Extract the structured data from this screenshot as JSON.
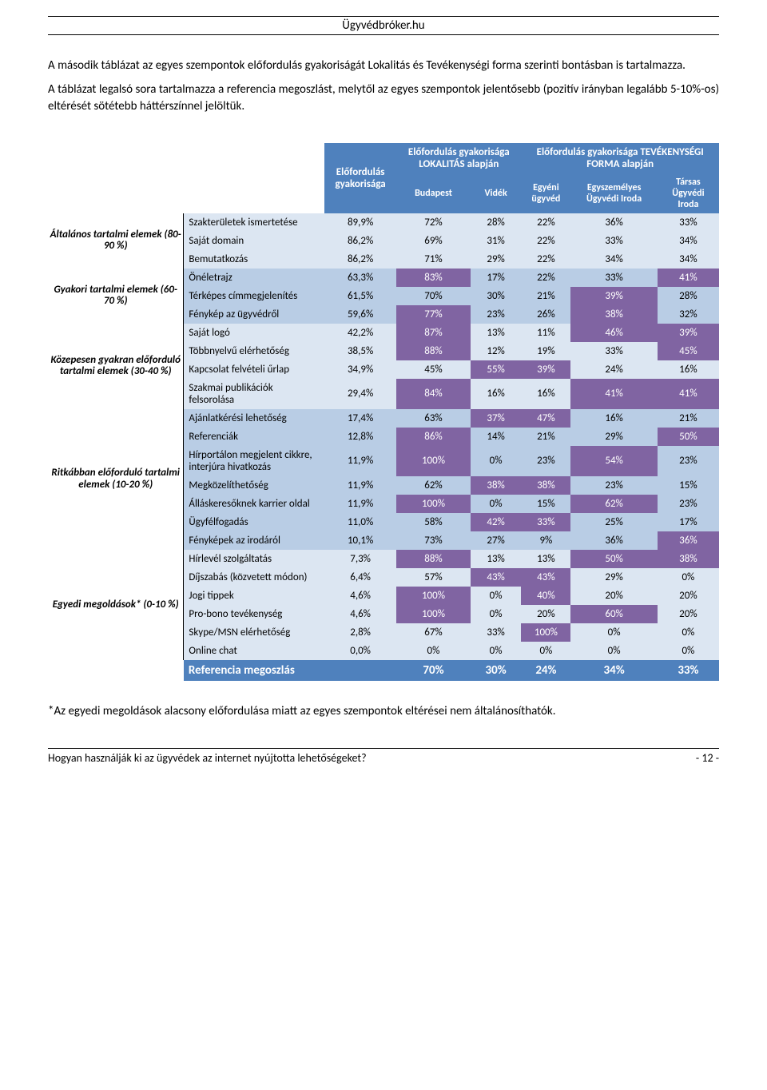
{
  "header": {
    "site": "Ügyvédbróker.hu"
  },
  "intro": {
    "p1": "A második táblázat az egyes szempontok előfordulás gyakoriságát Lokalitás és Tevékenységi forma szerinti bontásban is tartalmazza.",
    "p2": "A táblázat legalsó sora tartalmazza a referencia megoszlást, melytől az egyes szempontok jelentősebb (pozitív irányban legalább 5-10%-os) eltérését sötétebb háttérszínnel jelöltük."
  },
  "colhead": {
    "freq": "Előfordulás gyakorisága",
    "loc": "Előfordulás gyakorisága LOKALITÁS alapján",
    "act": "Előfordulás gyakorisága TEVÉKENYSÉGI FORMA alapján",
    "budapest": "Budapest",
    "videk": "Vidék",
    "egyeni": "Egyéni ügyvéd",
    "eszem": "Egyszemélyes Ügyvédi Iroda",
    "tarsas": "Társas Ügyvédi Iroda"
  },
  "groups": [
    {
      "label": "Általános tartalmi elemek (80-90 %)",
      "band": "A",
      "rows": [
        {
          "label": "Szakterületek ismertetése",
          "v": [
            "89,9%",
            "72%",
            "28%",
            "22%",
            "36%",
            "33%"
          ],
          "hi": [
            0,
            0,
            0,
            0,
            0,
            0
          ]
        },
        {
          "label": "Saját domain",
          "v": [
            "86,2%",
            "69%",
            "31%",
            "22%",
            "33%",
            "34%"
          ],
          "hi": [
            0,
            0,
            0,
            0,
            0,
            0
          ]
        },
        {
          "label": "Bemutatkozás",
          "v": [
            "86,2%",
            "71%",
            "29%",
            "22%",
            "34%",
            "34%"
          ],
          "hi": [
            0,
            0,
            0,
            0,
            0,
            0
          ]
        }
      ]
    },
    {
      "label": "Gyakori tartalmi elemek (60-70 %)",
      "band": "B",
      "rows": [
        {
          "label": "Önéletrajz",
          "v": [
            "63,3%",
            "83%",
            "17%",
            "22%",
            "33%",
            "41%"
          ],
          "hi": [
            0,
            1,
            0,
            0,
            0,
            1
          ]
        },
        {
          "label": "Térképes címmegjelenítés",
          "v": [
            "61,5%",
            "70%",
            "30%",
            "21%",
            "39%",
            "28%"
          ],
          "hi": [
            0,
            0,
            0,
            0,
            1,
            0
          ]
        },
        {
          "label": "Fénykép az ügyvédről",
          "v": [
            "59,6%",
            "77%",
            "23%",
            "26%",
            "38%",
            "32%"
          ],
          "hi": [
            0,
            1,
            0,
            0,
            1,
            0
          ]
        }
      ]
    },
    {
      "label": "Közepesen gyakran előforduló tartalmi elemek (30-40 %)",
      "band": "A",
      "rows": [
        {
          "label": "Saját logó",
          "v": [
            "42,2%",
            "87%",
            "13%",
            "11%",
            "46%",
            "39%"
          ],
          "hi": [
            0,
            1,
            0,
            0,
            1,
            1
          ]
        },
        {
          "label": "Többnyelvű elérhetőség",
          "v": [
            "38,5%",
            "88%",
            "12%",
            "19%",
            "33%",
            "45%"
          ],
          "hi": [
            0,
            1,
            0,
            0,
            0,
            1
          ]
        },
        {
          "label": "Kapcsolat felvételi űrlap",
          "v": [
            "34,9%",
            "45%",
            "55%",
            "39%",
            "24%",
            "16%"
          ],
          "hi": [
            0,
            0,
            1,
            1,
            0,
            0
          ]
        },
        {
          "label": "Szakmai publikációk felsorolása",
          "v": [
            "29,4%",
            "84%",
            "16%",
            "16%",
            "41%",
            "41%"
          ],
          "hi": [
            0,
            1,
            0,
            0,
            1,
            1
          ]
        }
      ]
    },
    {
      "label": "Ritkábban előforduló tartalmi elemek (10-20 %)",
      "band": "B",
      "rows": [
        {
          "label": "Ajánlatkérési lehetőség",
          "v": [
            "17,4%",
            "63%",
            "37%",
            "47%",
            "16%",
            "21%"
          ],
          "hi": [
            0,
            0,
            1,
            1,
            0,
            0
          ]
        },
        {
          "label": "Referenciák",
          "v": [
            "12,8%",
            "86%",
            "14%",
            "21%",
            "29%",
            "50%"
          ],
          "hi": [
            0,
            1,
            0,
            0,
            0,
            1
          ]
        },
        {
          "label": "Hírportálon megjelent cikkre, interjúra hivatkozás",
          "v": [
            "11,9%",
            "100%",
            "0%",
            "23%",
            "54%",
            "23%"
          ],
          "hi": [
            0,
            1,
            0,
            0,
            1,
            0
          ]
        },
        {
          "label": "Megközelíthetőség",
          "v": [
            "11,9%",
            "62%",
            "38%",
            "38%",
            "23%",
            "15%"
          ],
          "hi": [
            0,
            0,
            1,
            1,
            0,
            0
          ]
        },
        {
          "label": "Álláskeresőknek karrier oldal",
          "v": [
            "11,9%",
            "100%",
            "0%",
            "15%",
            "62%",
            "23%"
          ],
          "hi": [
            0,
            1,
            0,
            0,
            1,
            0
          ]
        },
        {
          "label": "Ügyfélfogadás",
          "v": [
            "11,0%",
            "58%",
            "42%",
            "33%",
            "25%",
            "17%"
          ],
          "hi": [
            0,
            0,
            1,
            1,
            0,
            0
          ]
        },
        {
          "label": "Fényképek az irodáról",
          "v": [
            "10,1%",
            "73%",
            "27%",
            "9%",
            "36%",
            "36%"
          ],
          "hi": [
            0,
            0,
            0,
            0,
            0,
            1
          ]
        }
      ]
    },
    {
      "label": "Egyedi megoldások* (0-10 %)",
      "band": "A",
      "rows": [
        {
          "label": "Hírlevél szolgáltatás",
          "v": [
            "7,3%",
            "88%",
            "13%",
            "13%",
            "50%",
            "38%"
          ],
          "hi": [
            0,
            1,
            0,
            0,
            1,
            1
          ]
        },
        {
          "label": "Díjszabás (közvetett módon)",
          "v": [
            "6,4%",
            "57%",
            "43%",
            "43%",
            "29%",
            "0%"
          ],
          "hi": [
            0,
            0,
            1,
            1,
            0,
            0
          ]
        },
        {
          "label": "Jogi tippek",
          "v": [
            "4,6%",
            "100%",
            "0%",
            "40%",
            "20%",
            "20%"
          ],
          "hi": [
            0,
            1,
            0,
            1,
            0,
            0
          ]
        },
        {
          "label": "Pro-bono tevékenység",
          "v": [
            "4,6%",
            "100%",
            "0%",
            "20%",
            "60%",
            "20%"
          ],
          "hi": [
            0,
            1,
            0,
            0,
            1,
            0
          ]
        },
        {
          "label": "Skype/MSN elérhetőség",
          "v": [
            "2,8%",
            "67%",
            "33%",
            "100%",
            "0%",
            "0%"
          ],
          "hi": [
            0,
            0,
            0,
            1,
            0,
            0
          ]
        },
        {
          "label": "Online chat",
          "v": [
            "0,0%",
            "0%",
            "0%",
            "0%",
            "0%",
            "0%"
          ],
          "hi": [
            0,
            0,
            0,
            0,
            0,
            0
          ]
        }
      ]
    }
  ],
  "ref": {
    "label": "Referencia megoszlás",
    "v": [
      "",
      "70%",
      "30%",
      "24%",
      "34%",
      "33%"
    ]
  },
  "note": "*Az egyedi megoldások alacsony előfordulása miatt az egyes szempontok eltérései nem általánosíthatók.",
  "footer": {
    "left": "Hogyan használják ki az ügyvédek az internet nyújtotta lehetőségeket?",
    "right": "- 12 -"
  },
  "style": {
    "header_bg": "#4f81bd",
    "bandA_bg": "#dce6f2",
    "bandB_bg": "#b9cde5",
    "hi_bg": "#8064a2",
    "hi_fg": "#ffffff"
  }
}
